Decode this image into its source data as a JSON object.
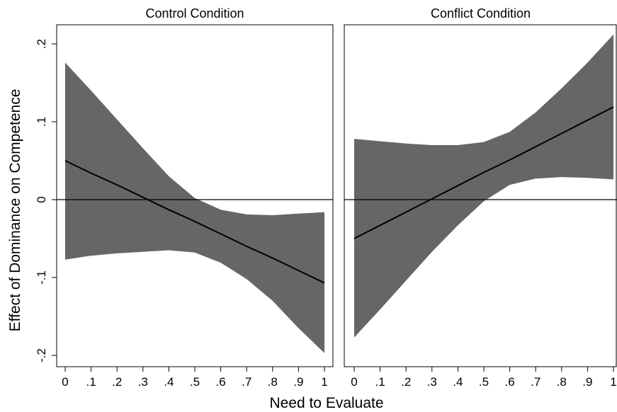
{
  "figure": {
    "xlabel": "Need to Evaluate",
    "ylabel": "Effect of Dominance on Competence",
    "band_color": "#666666",
    "line_color": "#000000"
  },
  "chart_data": [
    {
      "type": "line",
      "title": "Control Condition",
      "xlabel": "Need to Evaluate",
      "ylabel": "Effect of Dominance on Competence",
      "xlim": [
        0,
        1
      ],
      "ylim": [
        -0.2,
        0.2
      ],
      "x_ticks": [
        0,
        0.1,
        0.2,
        0.3,
        0.4,
        0.5,
        0.6,
        0.7,
        0.8,
        0.9,
        1
      ],
      "x_tick_labels": [
        "0",
        ".1",
        ".2",
        ".3",
        ".4",
        ".5",
        ".6",
        ".7",
        ".8",
        ".9",
        "1"
      ],
      "y_ticks": [
        -0.2,
        -0.1,
        0,
        0.1,
        0.2
      ],
      "y_tick_labels": [
        "-.2",
        "-.1",
        "0",
        ".1",
        ".2"
      ],
      "reference_line": 0,
      "grid": false,
      "x": [
        0,
        0.1,
        0.2,
        0.3,
        0.4,
        0.5,
        0.6,
        0.7,
        0.8,
        0.9,
        1
      ],
      "effect": [
        0.05,
        0.034,
        0.019,
        0.003,
        -0.013,
        -0.028,
        -0.044,
        -0.06,
        -0.075,
        -0.091,
        -0.107
      ],
      "ci_upper": [
        0.176,
        0.14,
        0.103,
        0.066,
        0.03,
        0.002,
        -0.013,
        -0.019,
        -0.02,
        -0.018,
        -0.016
      ],
      "ci_lower": [
        -0.077,
        -0.072,
        -0.069,
        -0.067,
        -0.065,
        -0.068,
        -0.081,
        -0.102,
        -0.13,
        -0.165,
        -0.197
      ]
    },
    {
      "type": "line",
      "title": "Conflict Condition",
      "xlabel": "Need to Evaluate",
      "ylabel": "Effect of Dominance on Competence",
      "xlim": [
        0,
        1
      ],
      "ylim": [
        -0.2,
        0.2
      ],
      "x_ticks": [
        0,
        0.1,
        0.2,
        0.3,
        0.4,
        0.5,
        0.6,
        0.7,
        0.8,
        0.9,
        1
      ],
      "x_tick_labels": [
        "0",
        ".1",
        ".2",
        ".3",
        ".4",
        ".5",
        ".6",
        ".7",
        ".8",
        ".9",
        "1"
      ],
      "y_ticks": [
        -0.2,
        -0.1,
        0,
        0.1,
        0.2
      ],
      "y_tick_labels": [
        "-.2",
        "-.1",
        "0",
        ".1",
        ".2"
      ],
      "reference_line": 0,
      "grid": false,
      "x": [
        0,
        0.1,
        0.2,
        0.3,
        0.4,
        0.5,
        0.6,
        0.7,
        0.8,
        0.9,
        1
      ],
      "effect": [
        -0.05,
        -0.033,
        -0.016,
        0.001,
        0.018,
        0.035,
        0.051,
        0.068,
        0.085,
        0.102,
        0.119
      ],
      "ci_upper": [
        0.078,
        0.075,
        0.072,
        0.07,
        0.07,
        0.074,
        0.087,
        0.112,
        0.143,
        0.176,
        0.212
      ],
      "ci_lower": [
        -0.177,
        -0.141,
        -0.104,
        -0.067,
        -0.033,
        -0.002,
        0.019,
        0.027,
        0.029,
        0.028,
        0.026
      ]
    }
  ]
}
